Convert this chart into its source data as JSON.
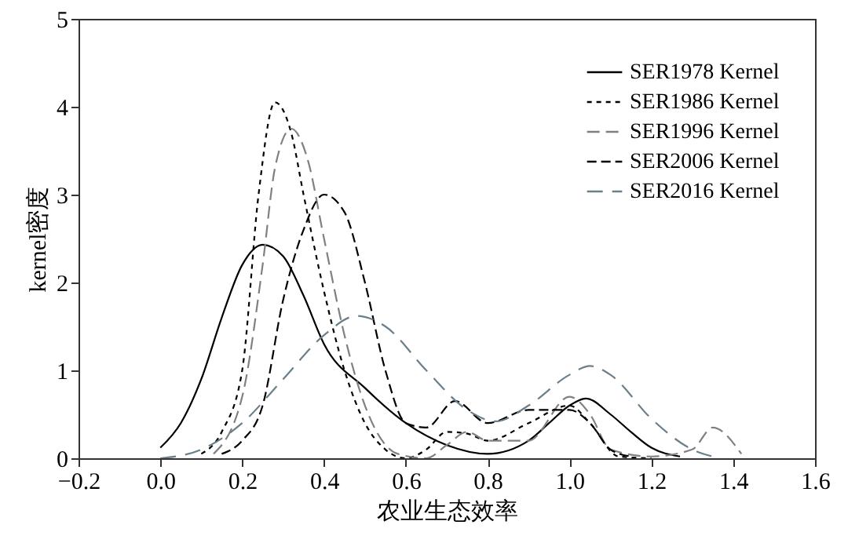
{
  "chart_data": {
    "type": "line",
    "xlabel": "农业生态效率",
    "ylabel": "kernel密度",
    "xlim": [
      -0.2,
      1.6
    ],
    "ylim": [
      0,
      5
    ],
    "xticks": [
      {
        "value": -0.2,
        "label": "−0.2"
      },
      {
        "value": 0,
        "label": "0.0"
      },
      {
        "value": 0.2,
        "label": "0.2"
      },
      {
        "value": 0.4,
        "label": "0.4"
      },
      {
        "value": 0.6,
        "label": "0.6"
      },
      {
        "value": 0.8,
        "label": "0.8"
      },
      {
        "value": 1,
        "label": "1.0"
      },
      {
        "value": 1.2,
        "label": "1.2"
      },
      {
        "value": 1.4,
        "label": "1.4"
      },
      {
        "value": 1.6,
        "label": "1.6"
      }
    ],
    "yticks": [
      0,
      1,
      2,
      3,
      4,
      5
    ],
    "grid": false,
    "legend": "top right",
    "marker": "none",
    "series": [
      {
        "name": "SER1978 Kernel",
        "color": "#000000",
        "line_style": "solid",
        "x": [
          0,
          0.05,
          0.1,
          0.15,
          0.2,
          0.25,
          0.3,
          0.35,
          0.4,
          0.5,
          0.6,
          0.7,
          0.8,
          0.9,
          0.95,
          1.0,
          1.04,
          1.1,
          1.15,
          1.2,
          1.27
        ],
        "values": [
          0.12,
          0.4,
          0.9,
          1.6,
          2.2,
          2.43,
          2.3,
          1.85,
          1.3,
          0.8,
          0.4,
          0.15,
          0.05,
          0.2,
          0.4,
          0.6,
          0.68,
          0.5,
          0.3,
          0.12,
          0.02
        ]
      },
      {
        "name": "SER1986 Kernel",
        "color": "#000000",
        "line_style": "dotted",
        "x": [
          0.1,
          0.15,
          0.2,
          0.24,
          0.28,
          0.32,
          0.35,
          0.4,
          0.45,
          0.5,
          0.55,
          0.6,
          0.65,
          0.7,
          0.75,
          0.8,
          0.9,
          1.0,
          1.05,
          1.12,
          1.2
        ],
        "values": [
          0.05,
          0.3,
          1.0,
          3.0,
          4.05,
          3.7,
          3.0,
          1.9,
          1.0,
          0.4,
          0.1,
          0.0,
          0.1,
          0.3,
          0.28,
          0.2,
          0.4,
          0.6,
          0.4,
          0.02,
          0
        ]
      },
      {
        "name": "SER1996 Kernel",
        "color": "#808080",
        "line_style": "dashed",
        "x": [
          0.13,
          0.2,
          0.25,
          0.28,
          0.32,
          0.36,
          0.4,
          0.45,
          0.5,
          0.58,
          0.65,
          0.7,
          0.75,
          0.8,
          0.9,
          1.0,
          1.05,
          1.1,
          1.2,
          1.3,
          1.35,
          1.42
        ],
        "values": [
          0.05,
          0.7,
          2.2,
          3.3,
          3.75,
          3.4,
          2.5,
          1.4,
          0.6,
          0.05,
          0.0,
          0.15,
          0.3,
          0.2,
          0.2,
          0.7,
          0.5,
          0.1,
          0.02,
          0.1,
          0.35,
          0.05
        ]
      },
      {
        "name": "SER2006 Kernel",
        "color": "#000000",
        "line_style": "dashed",
        "x": [
          0.15,
          0.2,
          0.25,
          0.3,
          0.35,
          0.4,
          0.45,
          0.5,
          0.55,
          0.6,
          0.65,
          0.72,
          0.8,
          0.9,
          1.0,
          1.05,
          1.1,
          1.15
        ],
        "values": [
          0.05,
          0.2,
          0.6,
          1.8,
          2.6,
          3.0,
          2.8,
          2.0,
          1.0,
          0.4,
          0.35,
          0.65,
          0.4,
          0.55,
          0.55,
          0.4,
          0.1,
          0.02
        ]
      },
      {
        "name": "SER2016 Kernel",
        "color": "#6a7f8a",
        "line_style": "dashed",
        "x": [
          0,
          0.1,
          0.2,
          0.3,
          0.4,
          0.48,
          0.55,
          0.65,
          0.75,
          0.82,
          0.9,
          1.0,
          1.05,
          1.1,
          1.2,
          1.3,
          1.35
        ],
        "values": [
          0,
          0.1,
          0.4,
          0.9,
          1.4,
          1.62,
          1.5,
          1.0,
          0.55,
          0.42,
          0.6,
          0.95,
          1.05,
          0.95,
          0.45,
          0.1,
          0.02
        ]
      }
    ]
  }
}
